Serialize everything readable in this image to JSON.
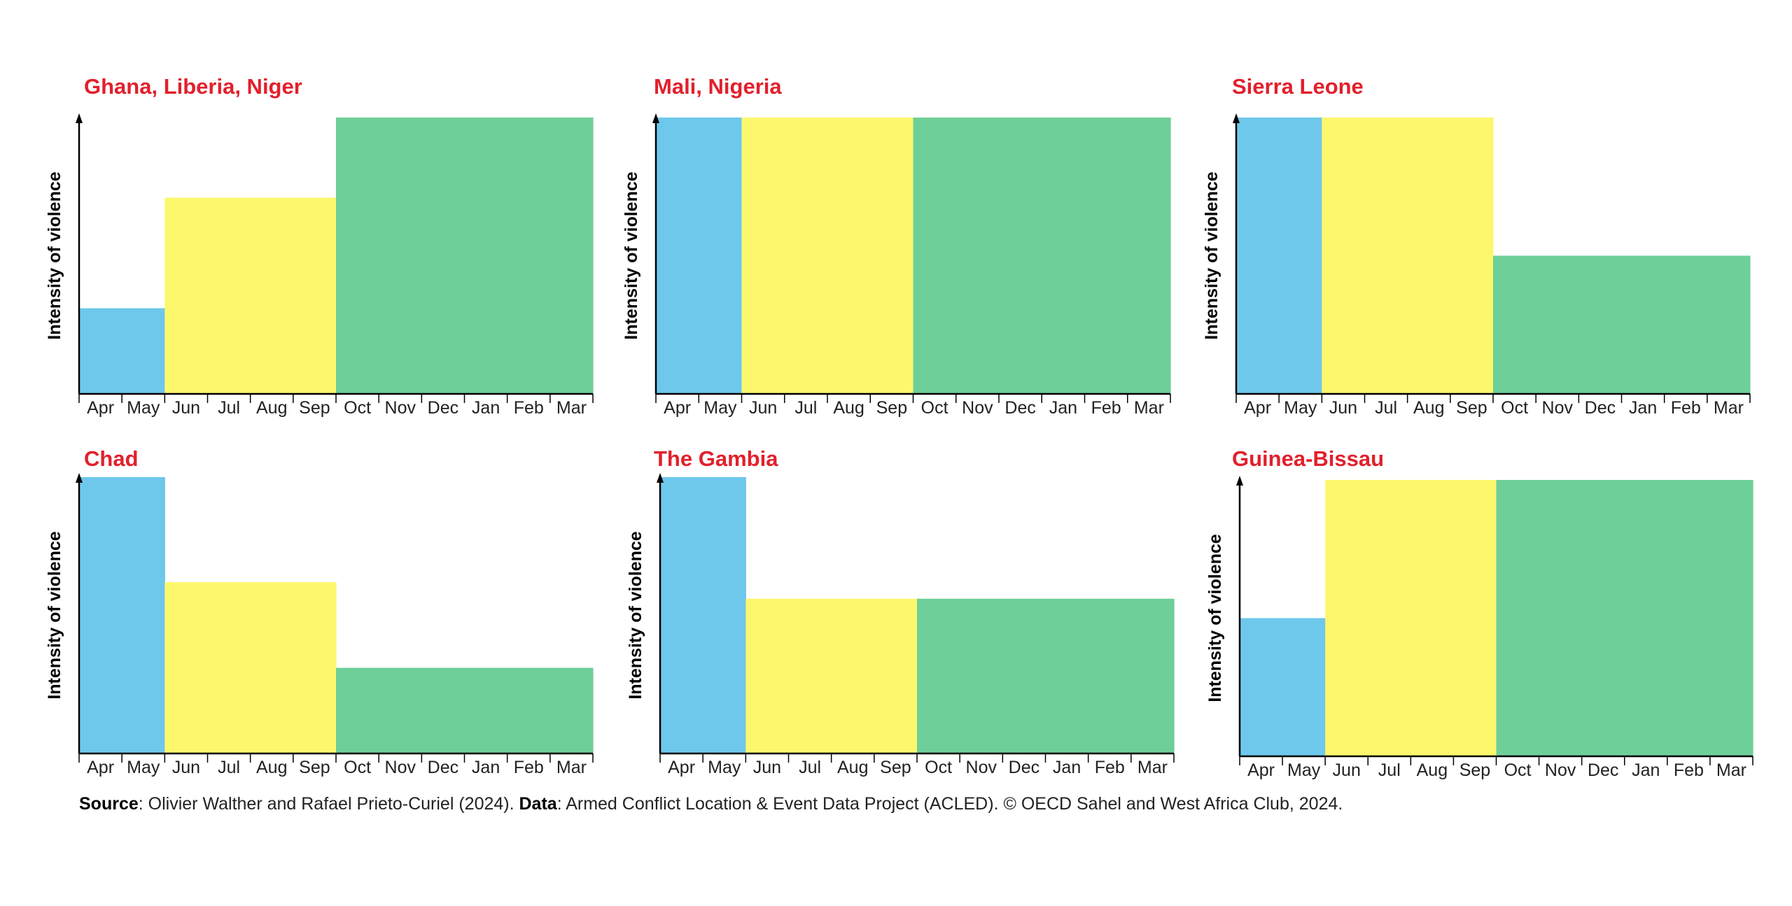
{
  "colors": {
    "rainy_start": "#6ec8ec",
    "rainy": "#fdf76e",
    "dry": "#6ecf98",
    "title": "#e2202c"
  },
  "chart_data": [
    {
      "type": "bar",
      "title": "Ghana, Liberia, Niger",
      "ylabel": "Intensity of violence",
      "categories": [
        "Apr",
        "May",
        "Jun",
        "Jul",
        "Aug",
        "Sep",
        "Oct",
        "Nov",
        "Dec",
        "Jan",
        "Feb",
        "Mar"
      ],
      "series": [
        {
          "values": [
            0.31,
            0.31,
            0.71,
            0.71,
            0.71,
            0.71,
            1,
            1,
            1,
            1,
            1,
            1
          ]
        }
      ],
      "ylim": [
        0,
        1
      ]
    },
    {
      "type": "bar",
      "title": "Mali, Nigeria",
      "ylabel": "Intensity of violence",
      "categories": [
        "Apr",
        "May",
        "Jun",
        "Jul",
        "Aug",
        "Sep",
        "Oct",
        "Nov",
        "Dec",
        "Jan",
        "Feb",
        "Mar"
      ],
      "series": [
        {
          "values": [
            1,
            1,
            1,
            1,
            1,
            1,
            1,
            1,
            1,
            1,
            1,
            1
          ]
        }
      ],
      "ylim": [
        0,
        1
      ]
    },
    {
      "type": "bar",
      "title": "Sierra Leone",
      "ylabel": "Intensity of violence",
      "categories": [
        "Apr",
        "May",
        "Jun",
        "Jul",
        "Aug",
        "Sep",
        "Oct",
        "Nov",
        "Dec",
        "Jan",
        "Feb",
        "Mar"
      ],
      "series": [
        {
          "values": [
            1,
            1,
            1,
            1,
            1,
            1,
            0.5,
            0.5,
            0.5,
            0.5,
            0.5,
            0.5
          ]
        }
      ],
      "ylim": [
        0,
        1
      ]
    },
    {
      "type": "bar",
      "title": "Chad",
      "ylabel": "Intensity of violence",
      "categories": [
        "Apr",
        "May",
        "Jun",
        "Jul",
        "Aug",
        "Sep",
        "Oct",
        "Nov",
        "Dec",
        "Jan",
        "Feb",
        "Mar"
      ],
      "series": [
        {
          "values": [
            1,
            1,
            0.62,
            0.62,
            0.62,
            0.62,
            0.31,
            0.31,
            0.31,
            0.31,
            0.31,
            0.31
          ]
        }
      ],
      "ylim": [
        0,
        1
      ]
    },
    {
      "type": "bar",
      "title": "The Gambia",
      "ylabel": "Intensity of violence",
      "categories": [
        "Apr",
        "May",
        "Jun",
        "Jul",
        "Aug",
        "Sep",
        "Oct",
        "Nov",
        "Dec",
        "Jan",
        "Feb",
        "Mar"
      ],
      "series": [
        {
          "values": [
            1,
            1,
            0.56,
            0.56,
            0.56,
            0.56,
            0.56,
            0.56,
            0.56,
            0.56,
            0.56,
            0.56
          ]
        }
      ],
      "ylim": [
        0,
        1
      ]
    },
    {
      "type": "bar",
      "title": "Guinea-Bissau",
      "ylabel": "Intensity of violence",
      "categories": [
        "Apr",
        "May",
        "Jun",
        "Jul",
        "Aug",
        "Sep",
        "Oct",
        "Nov",
        "Dec",
        "Jan",
        "Feb",
        "Mar"
      ],
      "series": [
        {
          "values": [
            0.5,
            0.5,
            1,
            1,
            1,
            1,
            1,
            1,
            1,
            1,
            1,
            1
          ]
        }
      ],
      "ylim": [
        0,
        1
      ]
    }
  ],
  "footer": {
    "source_label": "Source",
    "source_text": ": Olivier Walther and Rafael Prieto-Curiel (2024). ",
    "data_label": "Data",
    "data_text": ": Armed Conflict Location & Event Data Project (ACLED). © OECD Sahel and West Africa Club, 2024."
  }
}
